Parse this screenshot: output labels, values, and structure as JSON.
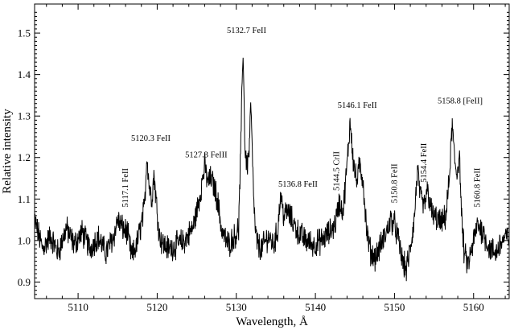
{
  "chart_data": {
    "type": "line",
    "title": "",
    "xlabel": "Wavelength, Å",
    "ylabel": "Relative intensity",
    "xlim": [
      5104.5,
      5164.5
    ],
    "ylim": [
      0.86,
      1.57
    ],
    "x_ticks": [
      5110,
      5120,
      5130,
      5140,
      5150,
      5160
    ],
    "x_tick_labels": [
      "5110",
      "5120",
      "5130",
      "5140",
      "5150",
      "5160"
    ],
    "y_ticks": [
      0.9,
      1.0,
      1.1,
      1.2,
      1.3,
      1.4,
      1.5
    ],
    "y_tick_labels": [
      "0.9",
      "1.0",
      "1.1",
      "1.2",
      "1.3",
      "1.4",
      "1.5"
    ],
    "grid": false,
    "line_color": "#000000",
    "series": [
      {
        "x": [
          5104.5,
          5105.5,
          5106.5,
          5107.5,
          5108.5,
          5109.5,
          5110.5,
          5111.5,
          5112.5,
          5113.5,
          5114.5,
          5115.0,
          5115.6,
          5116.2,
          5116.8,
          5117.4,
          5118.0,
          5118.4,
          5118.7,
          5119.0,
          5119.3,
          5119.6,
          5119.9,
          5120.3,
          5120.8,
          5121.5,
          5122.5,
          5123.5,
          5124.5,
          5125.0,
          5125.5,
          5126.0,
          5126.4,
          5126.8,
          5127.2,
          5127.6,
          5128.2,
          5129.0,
          5129.8,
          5130.3,
          5130.6,
          5130.85,
          5131.1,
          5131.35,
          5131.6,
          5131.85,
          5132.1,
          5132.4,
          5132.7,
          5133.2,
          5134.0,
          5134.7,
          5135.2,
          5135.6,
          5136.0,
          5136.5,
          5137.0,
          5137.8,
          5138.8,
          5139.8,
          5140.8,
          5141.8,
          5142.5,
          5143.0,
          5143.5,
          5144.0,
          5144.4,
          5144.8,
          5145.2,
          5145.6,
          5146.0,
          5146.5,
          5147.0,
          5147.6,
          5148.3,
          5149.0,
          5149.5,
          5150.0,
          5150.5,
          5151.0,
          5151.5,
          5152.0,
          5152.5,
          5152.9,
          5153.3,
          5153.7,
          5154.2,
          5154.8,
          5155.4,
          5156.0,
          5156.5,
          5156.9,
          5157.3,
          5157.6,
          5157.9,
          5158.2,
          5158.5,
          5158.8,
          5159.3,
          5159.9,
          5160.5,
          5161.2,
          5162.0,
          5162.8,
          5163.6,
          5164.5
        ],
        "y": [
          1.05,
          0.98,
          1.01,
          0.97,
          1.03,
          0.99,
          1.02,
          0.98,
          1.01,
          0.97,
          1.01,
          1.05,
          1.03,
          1.02,
          0.96,
          0.99,
          1.04,
          1.08,
          1.21,
          1.13,
          1.1,
          1.16,
          1.09,
          1.01,
          0.99,
          0.98,
          0.99,
          1.0,
          1.03,
          1.07,
          1.12,
          1.18,
          1.14,
          1.15,
          1.13,
          1.1,
          1.02,
          0.99,
          1.01,
          1.03,
          1.25,
          1.47,
          1.22,
          1.18,
          1.21,
          1.33,
          1.15,
          1.02,
          0.99,
          0.98,
          1.01,
          0.99,
          1.02,
          1.11,
          1.06,
          1.07,
          1.05,
          1.02,
          1.0,
          0.99,
          1.0,
          1.02,
          1.04,
          1.09,
          1.07,
          1.18,
          1.29,
          1.19,
          1.14,
          1.18,
          1.15,
          1.02,
          0.97,
          0.96,
          0.99,
          1.02,
          1.05,
          1.04,
          1.0,
          0.95,
          0.93,
          0.98,
          1.05,
          1.17,
          1.1,
          1.08,
          1.12,
          1.06,
          1.05,
          1.04,
          1.06,
          1.14,
          1.28,
          1.19,
          1.16,
          1.21,
          1.05,
          0.97,
          0.94,
          0.99,
          1.04,
          1.02,
          0.98,
          0.97,
          1.0,
          1.01
        ]
      }
    ],
    "annotations": [
      {
        "text": "5117.1 FeII",
        "x": 5116.3,
        "y": 1.08,
        "rotate": true
      },
      {
        "text": "5120.3 FeII",
        "x": 5119.2,
        "y": 1.24,
        "rotate": false
      },
      {
        "text": "5127.3 FeIII",
        "x": 5126.2,
        "y": 1.2,
        "rotate": false
      },
      {
        "text": "5132.7 FeII",
        "x": 5131.3,
        "y": 1.5,
        "rotate": false
      },
      {
        "text": "5136.8 FeII",
        "x": 5137.8,
        "y": 1.13,
        "rotate": false
      },
      {
        "text": "5144.5 CrII",
        "x": 5143.0,
        "y": 1.12,
        "rotate": true
      },
      {
        "text": "5146.1 FeII",
        "x": 5145.3,
        "y": 1.32,
        "rotate": false
      },
      {
        "text": "5150.8 FeII",
        "x": 5150.3,
        "y": 1.09,
        "rotate": true
      },
      {
        "text": "5154.4 FeII",
        "x": 5154.0,
        "y": 1.14,
        "rotate": true
      },
      {
        "text": "5158.8 [FeII]",
        "x": 5158.3,
        "y": 1.33,
        "rotate": false
      },
      {
        "text": "5160.8 FeII",
        "x": 5160.8,
        "y": 1.08,
        "rotate": true
      }
    ]
  }
}
